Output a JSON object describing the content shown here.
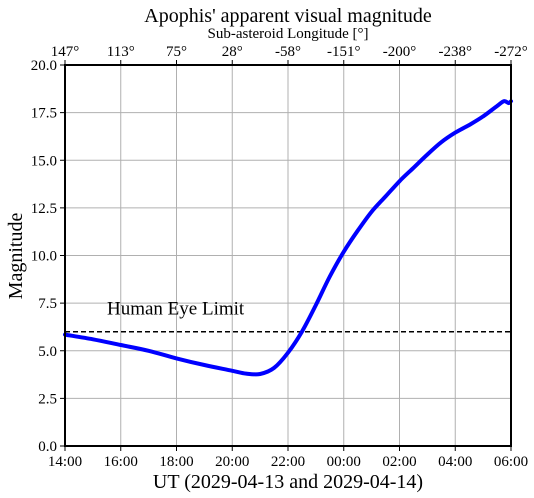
{
  "chart_data": {
    "type": "line",
    "title": "Apophis' apparent visual magnitude",
    "xlabel": "UT (2029-04-13 and 2029-04-14)",
    "ylabel": "Magnitude",
    "top_axis_label": "Sub-asteroid Longitude [°]",
    "xlim": [
      "2029-04-13 14:00",
      "2029-04-14 06:00"
    ],
    "ylim": [
      0,
      20
    ],
    "grid": true,
    "x_ticks": [
      {
        "time": "2029-04-13 14:00",
        "label": "14:00"
      },
      {
        "time": "2029-04-13 16:00",
        "label": "16:00"
      },
      {
        "time": "2029-04-13 18:00",
        "label": "18:00"
      },
      {
        "time": "2029-04-13 20:00",
        "label": "20:00"
      },
      {
        "time": "2029-04-13 22:00",
        "label": "22:00"
      },
      {
        "time": "2029-04-14 00:00",
        "label": "00:00"
      },
      {
        "time": "2029-04-14 02:00",
        "label": "02:00"
      },
      {
        "time": "2029-04-14 04:00",
        "label": "04:00"
      },
      {
        "time": "2029-04-14 06:00",
        "label": "06:00"
      }
    ],
    "y_ticks": [
      {
        "value": 0,
        "label": "0.0"
      },
      {
        "value": 2.5,
        "label": "2.5"
      },
      {
        "value": 5,
        "label": "5.0"
      },
      {
        "value": 7.5,
        "label": "7.5"
      },
      {
        "value": 10,
        "label": "10.0"
      },
      {
        "value": 12.5,
        "label": "12.5"
      },
      {
        "value": 15,
        "label": "15.0"
      },
      {
        "value": 17.5,
        "label": "17.5"
      },
      {
        "value": 20,
        "label": "20.0"
      }
    ],
    "top_ticks": [
      {
        "time": "2029-04-13 14:00",
        "label": "147°"
      },
      {
        "time": "2029-04-13 16:00",
        "label": "113°"
      },
      {
        "time": "2029-04-13 18:00",
        "label": "75°"
      },
      {
        "time": "2029-04-13 20:00",
        "label": "28°"
      },
      {
        "time": "2029-04-13 22:00",
        "label": "-58°"
      },
      {
        "time": "2029-04-14 00:00",
        "label": "-151°"
      },
      {
        "time": "2029-04-14 02:00",
        "label": "-200°"
      },
      {
        "time": "2029-04-14 04:00",
        "label": "-238°"
      },
      {
        "time": "2029-04-14 06:00",
        "label": "-272°"
      }
    ],
    "series": [
      {
        "color": "#0000ff",
        "points": [
          {
            "time": "2029-04-13 14:00",
            "value": 5.85
          },
          {
            "time": "2029-04-13 15:00",
            "value": 5.6
          },
          {
            "time": "2029-04-13 16:00",
            "value": 5.3
          },
          {
            "time": "2029-04-13 17:00",
            "value": 5.0
          },
          {
            "time": "2029-04-13 18:00",
            "value": 4.6
          },
          {
            "time": "2029-04-13 19:00",
            "value": 4.25
          },
          {
            "time": "2029-04-13 20:00",
            "value": 3.95
          },
          {
            "time": "2029-04-13 20:30",
            "value": 3.8
          },
          {
            "time": "2029-04-13 21:00",
            "value": 3.78
          },
          {
            "time": "2029-04-13 21:30",
            "value": 4.1
          },
          {
            "time": "2029-04-13 22:00",
            "value": 4.9
          },
          {
            "time": "2029-04-13 22:30",
            "value": 6.0
          },
          {
            "time": "2029-04-13 23:00",
            "value": 7.4
          },
          {
            "time": "2029-04-13 23:30",
            "value": 8.9
          },
          {
            "time": "2029-04-14 00:00",
            "value": 10.2
          },
          {
            "time": "2029-04-14 00:30",
            "value": 11.3
          },
          {
            "time": "2029-04-14 01:00",
            "value": 12.3
          },
          {
            "time": "2029-04-14 01:30",
            "value": 13.1
          },
          {
            "time": "2029-04-14 02:00",
            "value": 13.9
          },
          {
            "time": "2029-04-14 02:30",
            "value": 14.6
          },
          {
            "time": "2029-04-14 03:00",
            "value": 15.3
          },
          {
            "time": "2029-04-14 03:30",
            "value": 15.95
          },
          {
            "time": "2029-04-14 04:00",
            "value": 16.45
          },
          {
            "time": "2029-04-14 04:30",
            "value": 16.85
          },
          {
            "time": "2029-04-14 05:00",
            "value": 17.3
          },
          {
            "time": "2029-04-14 05:30",
            "value": 17.85
          },
          {
            "time": "2029-04-14 05:45",
            "value": 18.1
          },
          {
            "time": "2029-04-14 05:55",
            "value": 18.0
          },
          {
            "time": "2029-04-14 06:00",
            "value": 18.1
          }
        ]
      }
    ],
    "reference_line": {
      "value": 6.0,
      "label": "Human Eye Limit",
      "color": "#000000"
    }
  }
}
